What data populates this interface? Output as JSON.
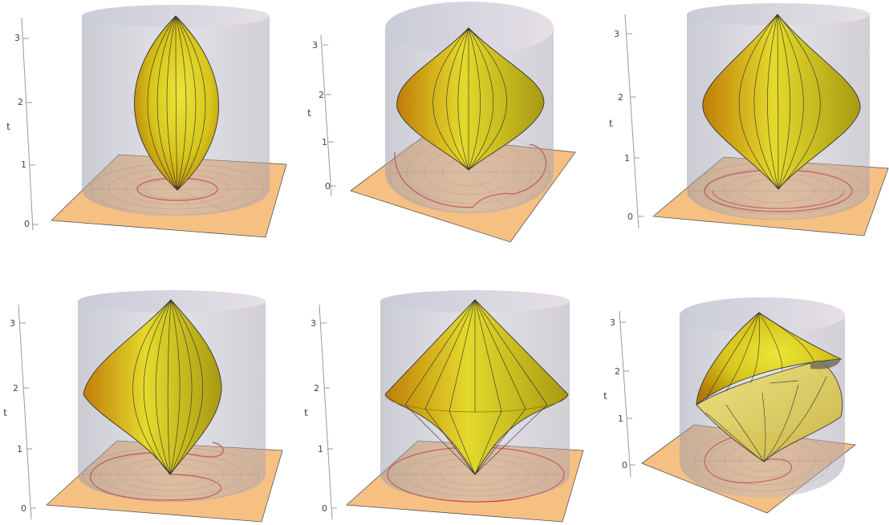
{
  "axis": {
    "label": "t",
    "ticks": [
      "0",
      "1",
      "2",
      "3"
    ]
  },
  "colors": {
    "cylinder": "#a3a3b3",
    "cylinder_top": "#d8d9e2",
    "base_plane": "#f7c083",
    "surface_light": "#e3dd2a",
    "surface_dark": "#c58c06",
    "curve": "#d8241a",
    "mesh": "#2a2a2a"
  },
  "panels": [
    {
      "id": "panel-1",
      "surface": "symmetric-bulge",
      "curve": "small-circle"
    },
    {
      "id": "panel-2",
      "surface": "low-flat-bulge",
      "curve": "large-loop"
    },
    {
      "id": "panel-3",
      "surface": "wide-bulge",
      "curve": "large-circle"
    },
    {
      "id": "panel-4",
      "surface": "skewed-bulge",
      "curve": "spiral"
    },
    {
      "id": "panel-5",
      "surface": "double-cone",
      "curve": "outer-circle"
    },
    {
      "id": "panel-6",
      "surface": "twisted-sheet",
      "curve": "spiral-out"
    }
  ]
}
